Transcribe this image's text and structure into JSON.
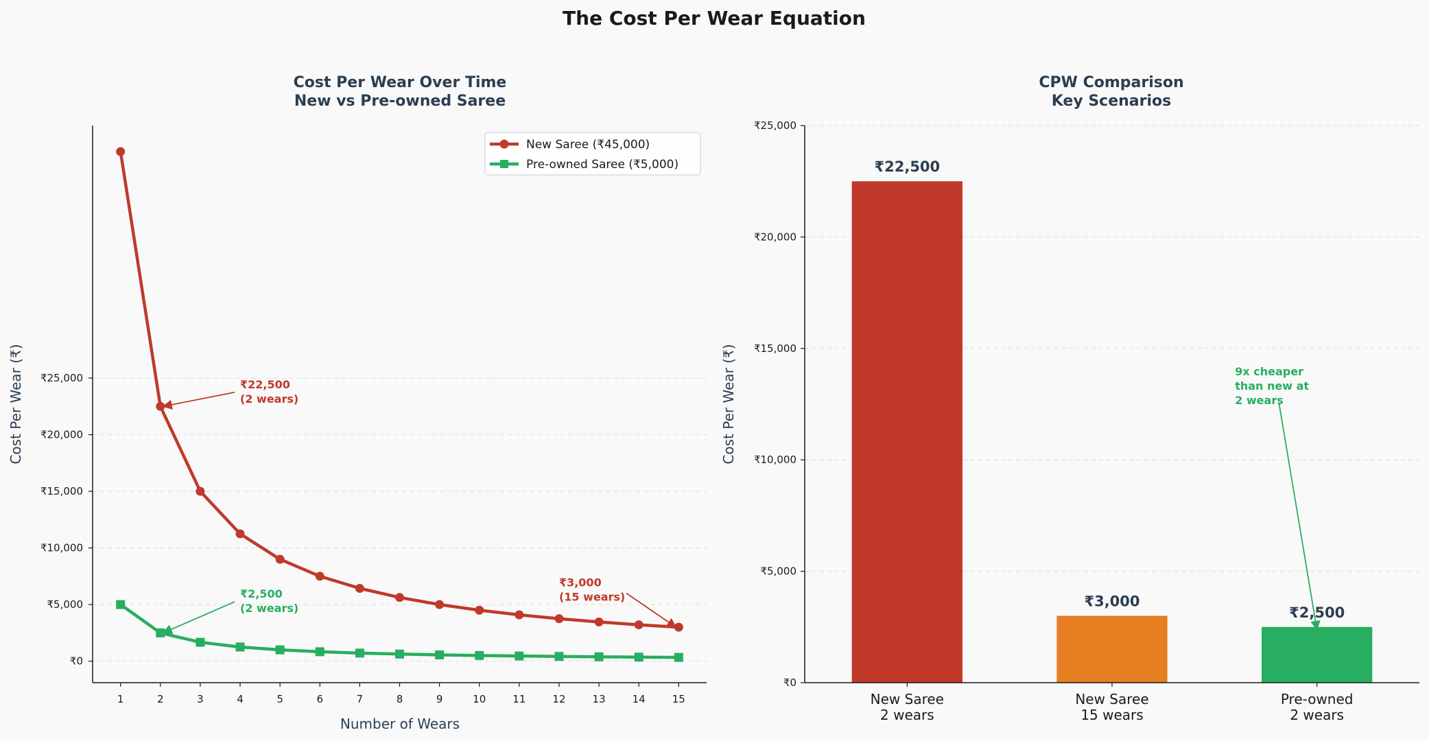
{
  "figure": {
    "suptitle": "The Cost Per Wear Equation"
  },
  "colors": {
    "new": "#c0392b",
    "preowned": "#27ae60",
    "new15": "#e67e22",
    "text_dark": "#2c3e50",
    "grid": "#dddddd"
  },
  "chart_data": [
    {
      "type": "line",
      "title": [
        "Cost Per Wear Over Time",
        "New vs Pre-owned Saree"
      ],
      "xlabel": "Number of Wears",
      "ylabel": "Cost Per Wear (₹)",
      "x": [
        1,
        2,
        3,
        4,
        5,
        6,
        7,
        8,
        9,
        10,
        11,
        12,
        13,
        14,
        15
      ],
      "x_ticks": [
        "1",
        "2",
        "3",
        "4",
        "5",
        "6",
        "7",
        "8",
        "9",
        "10",
        "11",
        "12",
        "13",
        "14",
        "15"
      ],
      "xlim": [
        0.3,
        15.7
      ],
      "ylim": [
        -1900,
        47300
      ],
      "y_ticks": [
        0,
        5000,
        10000,
        15000,
        20000,
        25000
      ],
      "y_tick_labels": [
        "₹0",
        "₹5,000",
        "₹10,000",
        "₹15,000",
        "₹20,000",
        "₹25,000"
      ],
      "grid": "y-dashed",
      "legend_position": "top-right",
      "series": [
        {
          "name": "New Saree (₹45,000)",
          "marker": "circle",
          "color": "#c0392b",
          "values": [
            45000,
            22500,
            15000,
            11250,
            9000,
            7500,
            6429,
            5625,
            5000,
            4500,
            4091,
            3750,
            3462,
            3214,
            3000
          ]
        },
        {
          "name": "Pre-owned Saree (₹5,000)",
          "marker": "square",
          "color": "#27ae60",
          "values": [
            5000,
            2500,
            1667,
            1250,
            1000,
            833,
            714,
            625,
            556,
            500,
            455,
            417,
            385,
            357,
            333
          ]
        }
      ],
      "annotations": [
        {
          "lines": [
            "₹22,500",
            "(2 wears)"
          ],
          "color": "#c0392b",
          "point": [
            2,
            22500
          ],
          "text_at": [
            4,
            23500
          ]
        },
        {
          "lines": [
            "₹2,500",
            "(2 wears)"
          ],
          "color": "#27ae60",
          "point": [
            2,
            2500
          ],
          "text_at": [
            4,
            5000
          ]
        },
        {
          "lines": [
            "₹3,000",
            "(15 wears)"
          ],
          "color": "#c0392b",
          "point": [
            15,
            3000
          ],
          "text_at": [
            12,
            6000
          ]
        }
      ]
    },
    {
      "type": "bar",
      "title": [
        "CPW Comparison",
        "Key Scenarios"
      ],
      "xlabel": "",
      "ylabel": "Cost Per Wear (₹)",
      "categories": [
        [
          "New Saree",
          "2 wears"
        ],
        [
          "New Saree",
          "15 wears"
        ],
        [
          "Pre-owned",
          "2 wears"
        ]
      ],
      "values": [
        22500,
        3000,
        2500
      ],
      "value_labels": [
        "₹22,500",
        "₹3,000",
        "₹2,500"
      ],
      "colors": [
        "#c0392b",
        "#e67e22",
        "#27ae60"
      ],
      "ylim": [
        0,
        25000
      ],
      "y_ticks": [
        0,
        5000,
        10000,
        15000,
        20000,
        25000
      ],
      "y_tick_labels": [
        "₹0",
        "₹5,000",
        "₹10,000",
        "₹15,000",
        "₹20,000",
        "₹25,000"
      ],
      "grid": "y-dashed",
      "annotations": [
        {
          "lines": [
            "9x cheaper",
            "than new at",
            "2 wears"
          ],
          "color": "#27ae60",
          "point": [
            2,
            2500
          ],
          "text_at": [
            1.6,
            13000
          ]
        }
      ]
    }
  ]
}
